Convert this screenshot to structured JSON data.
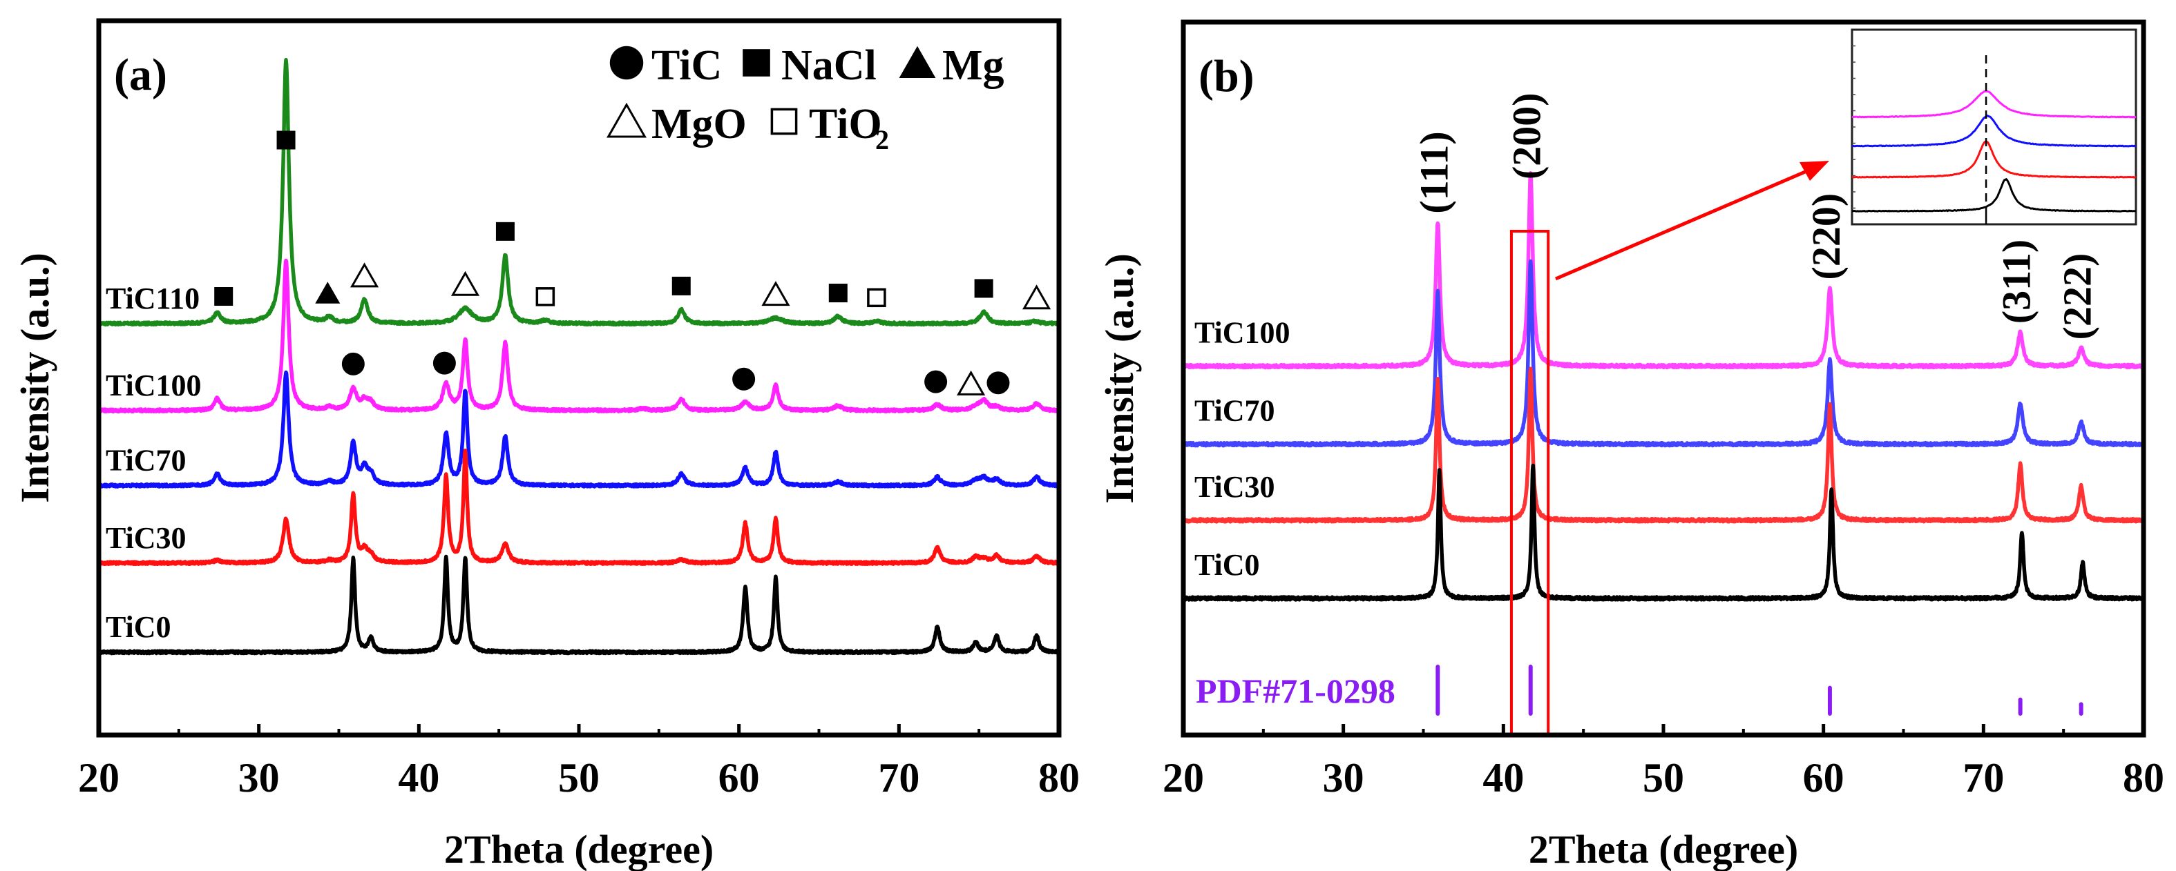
{
  "chart_data": [
    {
      "panel_label": "(a)",
      "type": "line",
      "title": "",
      "xlabel": "2Theta (degree)",
      "ylabel": "Intensity (a.u.)",
      "xlim": [
        20,
        80
      ],
      "xticks": [
        20,
        30,
        40,
        50,
        60,
        70,
        80
      ],
      "xtick_labels": [
        "20",
        "30",
        "40",
        "50",
        "60",
        "70",
        "80"
      ],
      "minor_xticks": [
        25,
        35,
        45,
        55,
        65,
        75
      ],
      "y_ticks_shown": false,
      "grid": false,
      "legend": {
        "placement": "top-right",
        "rows": [
          [
            {
              "symbol": "filled-circle",
              "label": "TiC"
            },
            {
              "symbol": "filled-square",
              "label": "NaCl"
            },
            {
              "symbol": "filled-triangle",
              "label": "Mg"
            }
          ],
          [
            {
              "symbol": "open-triangle",
              "label": "MgO"
            },
            {
              "symbol": "open-square",
              "label": "TiO",
              "subscript": "2"
            }
          ]
        ]
      },
      "series": [
        {
          "name": "TiC110",
          "color": "#1a8a1a",
          "offset": 7.0,
          "peaks": [
            [
              27.4,
              0.22,
              0.25
            ],
            [
              31.7,
              5.6,
              0.22
            ],
            [
              34.4,
              0.12,
              0.25
            ],
            [
              36.6,
              0.5,
              0.25
            ],
            [
              42.9,
              0.32,
              0.5
            ],
            [
              45.4,
              1.45,
              0.22
            ],
            [
              47.9,
              0.06,
              0.3
            ],
            [
              56.4,
              0.3,
              0.25
            ],
            [
              62.3,
              0.12,
              0.5
            ],
            [
              66.2,
              0.15,
              0.3
            ],
            [
              68.6,
              0.05,
              0.3
            ],
            [
              75.3,
              0.25,
              0.3
            ],
            [
              78.5,
              0.05,
              0.3
            ]
          ]
        },
        {
          "name": "TiC100",
          "color": "#ff22ff",
          "offset": 5.15,
          "peaks": [
            [
              27.4,
              0.25,
              0.22
            ],
            [
              31.7,
              3.2,
              0.2
            ],
            [
              34.4,
              0.06,
              0.25
            ],
            [
              35.9,
              0.45,
              0.25
            ],
            [
              36.6,
              0.2,
              0.25
            ],
            [
              37.0,
              0.15,
              0.25
            ],
            [
              41.7,
              0.55,
              0.25
            ],
            [
              42.9,
              1.5,
              0.18
            ],
            [
              45.4,
              1.45,
              0.2
            ],
            [
              54.0,
              0.04,
              0.3
            ],
            [
              56.4,
              0.25,
              0.25
            ],
            [
              60.4,
              0.18,
              0.3
            ],
            [
              62.3,
              0.55,
              0.2
            ],
            [
              66.2,
              0.1,
              0.3
            ],
            [
              72.4,
              0.12,
              0.3
            ],
            [
              74.8,
              0.07,
              0.3
            ],
            [
              75.3,
              0.2,
              0.3
            ],
            [
              76.1,
              0.07,
              0.3
            ],
            [
              78.6,
              0.15,
              0.25
            ]
          ]
        },
        {
          "name": "TiC70",
          "color": "#1010ff",
          "offset": 3.55,
          "peaks": [
            [
              27.4,
              0.25,
              0.22
            ],
            [
              31.7,
              2.4,
              0.2
            ],
            [
              34.4,
              0.08,
              0.25
            ],
            [
              35.9,
              0.9,
              0.2
            ],
            [
              36.6,
              0.35,
              0.25
            ],
            [
              37.0,
              0.2,
              0.25
            ],
            [
              41.7,
              1.1,
              0.2
            ],
            [
              42.9,
              2.0,
              0.16
            ],
            [
              45.4,
              1.05,
              0.2
            ],
            [
              56.4,
              0.25,
              0.25
            ],
            [
              60.4,
              0.38,
              0.22
            ],
            [
              62.3,
              0.72,
              0.18
            ],
            [
              66.2,
              0.08,
              0.3
            ],
            [
              72.4,
              0.18,
              0.25
            ],
            [
              74.8,
              0.1,
              0.3
            ],
            [
              75.3,
              0.15,
              0.3
            ],
            [
              76.1,
              0.12,
              0.3
            ],
            [
              78.6,
              0.18,
              0.25
            ]
          ]
        },
        {
          "name": "TiC30",
          "color": "#ff1010",
          "offset": 1.9,
          "peaks": [
            [
              27.4,
              0.06,
              0.25
            ],
            [
              31.7,
              0.95,
              0.22
            ],
            [
              34.4,
              0.05,
              0.25
            ],
            [
              35.9,
              1.45,
              0.16
            ],
            [
              36.6,
              0.25,
              0.25
            ],
            [
              37.0,
              0.15,
              0.25
            ],
            [
              41.7,
              1.85,
              0.16
            ],
            [
              42.9,
              2.35,
              0.14
            ],
            [
              45.4,
              0.4,
              0.25
            ],
            [
              56.4,
              0.07,
              0.3
            ],
            [
              60.4,
              0.85,
              0.18
            ],
            [
              62.3,
              0.95,
              0.16
            ],
            [
              72.4,
              0.35,
              0.2
            ],
            [
              74.8,
              0.12,
              0.25
            ],
            [
              75.3,
              0.08,
              0.3
            ],
            [
              76.1,
              0.15,
              0.25
            ],
            [
              78.6,
              0.15,
              0.25
            ]
          ]
        },
        {
          "name": "TiC0",
          "color": "#000000",
          "offset": 0.0,
          "peaks": [
            [
              35.9,
              2.0,
              0.14
            ],
            [
              37.0,
              0.3,
              0.18
            ],
            [
              41.7,
              2.0,
              0.14
            ],
            [
              42.9,
              2.0,
              0.14
            ],
            [
              60.4,
              1.4,
              0.16
            ],
            [
              62.3,
              1.6,
              0.14
            ],
            [
              72.4,
              0.55,
              0.18
            ],
            [
              74.8,
              0.2,
              0.2
            ],
            [
              76.1,
              0.35,
              0.18
            ],
            [
              78.6,
              0.35,
              0.18
            ]
          ]
        }
      ],
      "annotations": [
        {
          "symbol": "filled-square",
          "x": 27.8,
          "series": "TiC110"
        },
        {
          "symbol": "filled-square",
          "x": 31.7,
          "series": "TiC110"
        },
        {
          "symbol": "filled-triangle",
          "x": 34.3,
          "series": "TiC110"
        },
        {
          "symbol": "open-triangle",
          "x": 36.6,
          "series": "TiC110"
        },
        {
          "symbol": "open-triangle",
          "x": 42.9,
          "series": "TiC110"
        },
        {
          "symbol": "filled-square",
          "x": 45.4,
          "series": "TiC110"
        },
        {
          "symbol": "open-square",
          "x": 47.9,
          "series": "TiC110"
        },
        {
          "symbol": "filled-square",
          "x": 56.4,
          "series": "TiC110"
        },
        {
          "symbol": "open-triangle",
          "x": 62.3,
          "series": "TiC110"
        },
        {
          "symbol": "filled-square",
          "x": 66.2,
          "series": "TiC110"
        },
        {
          "symbol": "open-square",
          "x": 68.6,
          "series": "TiC110"
        },
        {
          "symbol": "filled-square",
          "x": 75.3,
          "series": "TiC110"
        },
        {
          "symbol": "open-triangle",
          "x": 78.6,
          "series": "TiC110"
        },
        {
          "symbol": "filled-circle",
          "x": 35.9,
          "series": "TiC100"
        },
        {
          "symbol": "filled-circle",
          "x": 41.6,
          "series": "TiC100"
        },
        {
          "symbol": "filled-circle",
          "x": 60.3,
          "series": "TiC100"
        },
        {
          "symbol": "filled-circle",
          "x": 72.3,
          "series": "TiC100"
        },
        {
          "symbol": "open-triangle",
          "x": 74.5,
          "series": "TiC100"
        },
        {
          "symbol": "filled-circle",
          "x": 76.2,
          "series": "TiC100"
        }
      ]
    },
    {
      "panel_label": "(b)",
      "type": "line",
      "title": "",
      "xlabel": "2Theta (degree)",
      "ylabel": "Intensity (a.u.)",
      "xlim": [
        20,
        80
      ],
      "xticks": [
        20,
        30,
        40,
        50,
        60,
        70,
        80
      ],
      "xtick_labels": [
        "20",
        "30",
        "40",
        "50",
        "60",
        "70",
        "80"
      ],
      "minor_xticks": [
        25,
        35,
        45,
        55,
        65,
        75
      ],
      "y_ticks_shown": false,
      "grid": false,
      "series": [
        {
          "name": "TiC100",
          "color": "#ff44ff",
          "offset": 5.8,
          "peaks": [
            [
              35.9,
              3.6,
              0.16
            ],
            [
              41.7,
              4.8,
              0.16
            ],
            [
              60.4,
              1.95,
              0.18
            ],
            [
              72.3,
              0.85,
              0.2
            ],
            [
              76.1,
              0.45,
              0.22
            ]
          ]
        },
        {
          "name": "TiC70",
          "color": "#4444ff",
          "offset": 3.85,
          "peaks": [
            [
              35.9,
              3.8,
              0.15
            ],
            [
              41.7,
              4.6,
              0.15
            ],
            [
              60.4,
              2.1,
              0.17
            ],
            [
              72.3,
              1.0,
              0.2
            ],
            [
              76.1,
              0.55,
              0.2
            ]
          ]
        },
        {
          "name": "TiC30",
          "color": "#ff3333",
          "offset": 1.95,
          "peaks": [
            [
              35.9,
              3.5,
              0.13
            ],
            [
              41.7,
              3.8,
              0.13
            ],
            [
              60.4,
              2.9,
              0.14
            ],
            [
              72.3,
              1.4,
              0.16
            ],
            [
              76.1,
              0.85,
              0.17
            ]
          ]
        },
        {
          "name": "TiC0",
          "color": "#000000",
          "offset": 0.0,
          "peaks": [
            [
              36.0,
              3.2,
              0.11
            ],
            [
              41.85,
              3.35,
              0.11
            ],
            [
              60.5,
              2.75,
              0.12
            ],
            [
              72.4,
              1.65,
              0.13
            ],
            [
              76.2,
              0.9,
              0.14
            ]
          ]
        }
      ],
      "miller_indices": [
        {
          "label": "(111)",
          "x": 35.9
        },
        {
          "label": "(200)",
          "x": 41.7
        },
        {
          "label": "(220)",
          "x": 60.4
        },
        {
          "label": "(311)",
          "x": 72.3
        },
        {
          "label": "(222)",
          "x": 76.1
        }
      ],
      "reference": {
        "label": "PDF#71-0298",
        "color": "#8a1ef2",
        "sticks": [
          [
            35.9,
            1.0
          ],
          [
            41.7,
            1.0
          ],
          [
            60.4,
            0.55
          ],
          [
            72.3,
            0.3
          ],
          [
            76.1,
            0.2
          ]
        ]
      },
      "highlight_box": {
        "xrange": [
          40.5,
          42.8
        ],
        "color": "#ff0000"
      },
      "inset": {
        "description": "Zoom of (200) peak region showing shift",
        "reference_line_x": 41.7,
        "xlim": [
          40.0,
          43.6
        ],
        "series": [
          {
            "name": "TiC100",
            "color": "#ff22ff",
            "center": 41.7,
            "height": 0.9,
            "width": 0.2
          },
          {
            "name": "TiC70",
            "color": "#1010ff",
            "center": 41.72,
            "height": 1.05,
            "width": 0.17
          },
          {
            "name": "TiC30",
            "color": "#ff1010",
            "center": 41.7,
            "height": 1.25,
            "width": 0.12
          },
          {
            "name": "TiC0",
            "color": "#000000",
            "center": 41.95,
            "height": 1.1,
            "width": 0.1
          }
        ]
      }
    }
  ]
}
